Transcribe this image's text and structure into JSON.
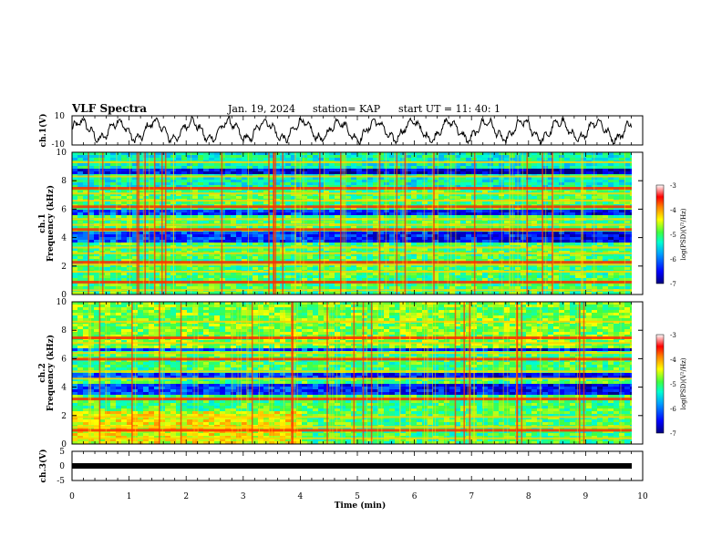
{
  "header": {
    "title": "VLF Spectra",
    "date": "Jan. 19, 2024",
    "station": "station= KAP",
    "start": "start  UT =  11: 40: 1"
  },
  "chart_data": [
    {
      "type": "line",
      "id": "ch1-waveform",
      "ylabel": "ch.1(V)",
      "ylim": [
        -10,
        10
      ],
      "yticks": [
        "10",
        "-10"
      ],
      "xlim": [
        0,
        10
      ],
      "note": "dense oscillating waveform, amplitude roughly -8 to +9 V",
      "color": "#000000"
    },
    {
      "type": "heatmap",
      "id": "ch1-spectrogram",
      "ylabel": "ch.1\nFrequency (kHz)",
      "ylabel_line1": "ch.1",
      "ylabel_line2": "Frequency (kHz)",
      "ylim": [
        0,
        10
      ],
      "yticks": [
        "0",
        "2",
        "4",
        "6",
        "8",
        "10"
      ],
      "xlim": [
        0,
        10
      ],
      "colorbar": {
        "label": "log(PSD)(V²/Hz)",
        "range": [
          -7,
          -3
        ],
        "ticks": [
          "-3",
          "-4",
          "-5",
          "-6",
          "-7"
        ]
      },
      "bands_khz": [
        0.3,
        0.9,
        1.6,
        2.1,
        2.3,
        2.9,
        3.3,
        4.6,
        4.9,
        5.3,
        6.2,
        6.6,
        7.1,
        7.5,
        8.3,
        9.3
      ],
      "quiet_bands_khz": [
        [
          3.7,
          4.5
        ],
        [
          5.6,
          6.0
        ],
        [
          8.5,
          9.0
        ]
      ]
    },
    {
      "type": "heatmap",
      "id": "ch2-spectrogram",
      "ylabel": "ch.2\nFrequency (kHz)",
      "ylabel_line1": "ch.2",
      "ylabel_line2": "Frequency (kHz)",
      "ylim": [
        0,
        10
      ],
      "yticks": [
        "0",
        "2",
        "4",
        "6",
        "8",
        "10"
      ],
      "xlim": [
        0,
        10
      ],
      "colorbar": {
        "label": "log(PSD)(V²/Hz)",
        "range": [
          -7,
          -3
        ],
        "ticks": [
          "-3",
          "-4",
          "-5",
          "-6",
          "-7"
        ]
      },
      "bands_khz": [
        0.4,
        1.0,
        1.2,
        1.9,
        3.2,
        4.6,
        5.1,
        6.0,
        6.4,
        7.1,
        7.5,
        8.6
      ],
      "quiet_bands_khz": [
        [
          3.5,
          4.4
        ],
        [
          4.8,
          5.0
        ],
        [
          6.6,
          6.9
        ]
      ]
    },
    {
      "type": "line",
      "id": "ch3-waveform",
      "ylabel": "ch.3(V)",
      "ylim": [
        -5,
        5
      ],
      "yticks": [
        "5",
        "0",
        "-5"
      ],
      "xlim": [
        0,
        10
      ],
      "xlabel": "Time (min)",
      "xticks": [
        "0",
        "1",
        "2",
        "3",
        "4",
        "5",
        "6",
        "7",
        "8",
        "9",
        "10"
      ],
      "value": -0.5,
      "note": "flat saturated black band near 0 V",
      "color": "#000000"
    }
  ]
}
